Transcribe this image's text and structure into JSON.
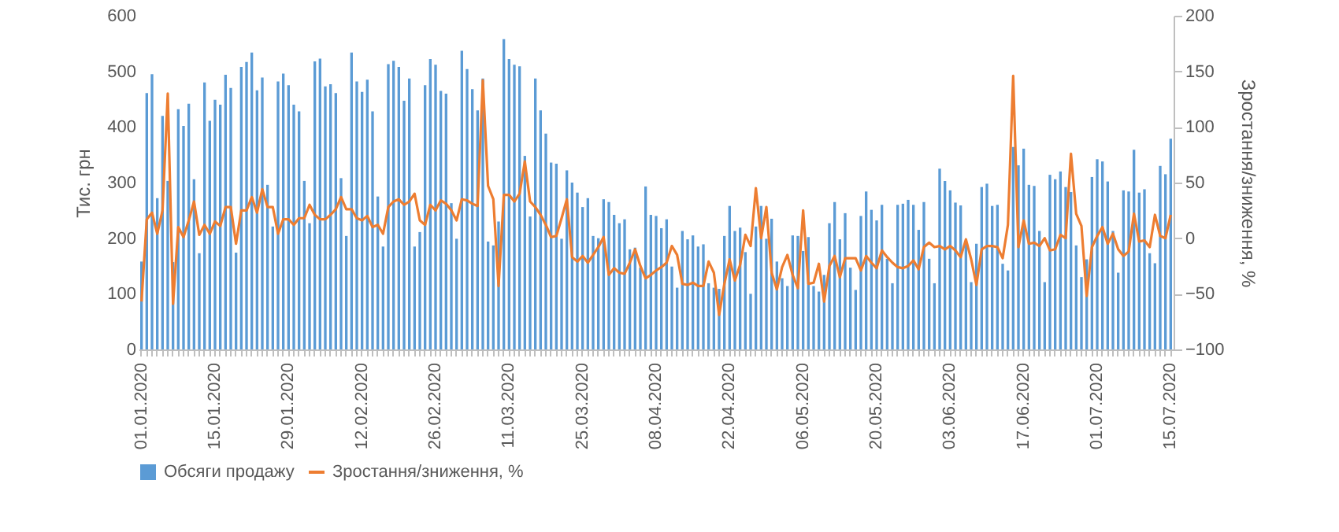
{
  "chart_data": {
    "type": "bar",
    "ylabel": "Тис. грн",
    "y2label": "Зростання/зниження, %",
    "ylim": [
      0,
      600
    ],
    "yticks": [
      0,
      100,
      200,
      300,
      400,
      500,
      600
    ],
    "y2lim": [
      -100,
      200
    ],
    "y2ticks": [
      -100,
      -50,
      0,
      50,
      100,
      150,
      200
    ],
    "legend": "bottom",
    "categories": [
      "01.01.2020",
      null,
      null,
      null,
      null,
      null,
      null,
      null,
      null,
      null,
      null,
      null,
      null,
      null,
      "15.01.2020",
      null,
      null,
      null,
      null,
      null,
      null,
      null,
      null,
      null,
      null,
      null,
      null,
      null,
      "29.01.2020",
      null,
      null,
      null,
      null,
      null,
      null,
      null,
      null,
      null,
      null,
      null,
      null,
      null,
      "12.02.2020",
      null,
      null,
      null,
      null,
      null,
      null,
      null,
      null,
      null,
      null,
      null,
      null,
      null,
      "26.02.2020",
      null,
      null,
      null,
      null,
      null,
      null,
      null,
      null,
      null,
      null,
      null,
      null,
      null,
      "11.03.2020",
      null,
      null,
      null,
      null,
      null,
      null,
      null,
      null,
      null,
      null,
      null,
      null,
      null,
      "25.03.2020",
      null,
      null,
      null,
      null,
      null,
      null,
      null,
      null,
      null,
      null,
      null,
      null,
      null,
      "08.04.2020",
      null,
      null,
      null,
      null,
      null,
      null,
      null,
      null,
      null,
      null,
      null,
      null,
      null,
      "22.04.2020",
      null,
      null,
      null,
      null,
      null,
      null,
      null,
      null,
      null,
      null,
      null,
      null,
      null,
      "06.05.2020",
      null,
      null,
      null,
      null,
      null,
      null,
      null,
      null,
      null,
      null,
      null,
      null,
      null,
      "20.05.2020",
      null,
      null,
      null,
      null,
      null,
      null,
      null,
      null,
      null,
      null,
      null,
      null,
      null,
      "03.06.2020",
      null,
      null,
      null,
      null,
      null,
      null,
      null,
      null,
      null,
      null,
      null,
      null,
      null,
      "17.06.2020",
      null,
      null,
      null,
      null,
      null,
      null,
      null,
      null,
      null,
      null,
      null,
      null,
      null,
      "01.07.2020",
      null,
      null,
      null,
      null,
      null,
      null,
      null,
      null,
      null,
      null,
      null,
      null,
      null,
      "15.07.2020"
    ],
    "series": [
      {
        "name": "Обсяги продажу",
        "color": "#5b9bd5",
        "values": [
          158,
          461,
          495,
          272,
          420,
          303,
          157,
          432,
          402,
          442,
          306,
          173,
          480,
          411,
          449,
          440,
          494,
          470,
          174,
          508,
          517,
          534,
          466,
          489,
          296,
          221,
          482,
          496,
          475,
          440,
          428,
          303,
          227,
          518,
          523,
          473,
          477,
          461,
          308,
          204,
          534,
          482,
          463,
          485,
          428,
          275,
          185,
          513,
          519,
          508,
          447,
          487,
          185,
          211,
          475,
          522,
          512,
          465,
          460,
          263,
          199,
          537,
          504,
          468,
          430,
          487,
          194,
          187,
          230,
          558,
          522,
          512,
          509,
          348,
          239,
          487,
          430,
          388,
          336,
          334,
          199,
          322,
          300,
          282,
          256,
          272,
          204,
          200,
          270,
          265,
          242,
          227,
          234,
          180,
          183,
          147,
          293,
          242,
          240,
          218,
          234,
          149,
          111,
          213,
          198,
          205,
          185,
          189,
          119,
          111,
          109,
          204,
          258,
          213,
          219,
          175,
          100,
          221,
          258,
          199,
          235,
          158,
          128,
          114,
          205,
          204,
          177,
          202,
          114,
          104,
          134,
          227,
          265,
          198,
          245,
          147,
          107,
          240,
          284,
          251,
          232,
          260,
          163,
          119,
          260,
          262,
          269,
          260,
          215,
          265,
          163,
          119,
          325,
          303,
          286,
          264,
          259,
          194,
          121,
          190,
          292,
          298,
          258,
          260,
          154,
          142,
          364,
          331,
          361,
          296,
          294,
          213,
          121,
          314,
          306,
          320,
          292,
          283,
          187,
          130,
          162,
          310,
          342,
          338,
          302,
          213,
          138,
          286,
          284,
          359,
          282,
          288,
          173,
          155,
          330,
          315,
          379
        ]
      },
      {
        "name": "Зростання/зниження, %",
        "type": "line",
        "axis": "y2",
        "color": "#ed7d31",
        "values": [
          -57,
          17,
          23,
          4,
          25,
          130,
          -59,
          10,
          1,
          16,
          33,
          3,
          12,
          4,
          15,
          11,
          28,
          28,
          -5,
          25,
          25,
          37,
          23,
          44,
          28,
          28,
          4,
          17,
          17,
          12,
          18,
          18,
          30,
          21,
          17,
          17,
          21,
          26,
          37,
          26,
          26,
          18,
          16,
          20,
          10,
          12,
          4,
          28,
          33,
          35,
          30,
          33,
          40,
          16,
          12,
          30,
          25,
          34,
          31,
          25,
          16,
          35,
          34,
          31,
          29,
          142,
          47,
          35,
          -43,
          39,
          39,
          33,
          40,
          69,
          33,
          28,
          21,
          12,
          1,
          2,
          18,
          35,
          -17,
          -21,
          -16,
          -22,
          -15,
          -8,
          1,
          -33,
          -27,
          -31,
          -32,
          -22,
          -10,
          -25,
          -36,
          -33,
          -29,
          -26,
          -22,
          -7,
          -15,
          -41,
          -42,
          -40,
          -43,
          -43,
          -21,
          -31,
          -69,
          -41,
          -19,
          -38,
          -24,
          3,
          -7,
          45,
          0,
          28,
          -31,
          -46,
          -26,
          -15,
          -33,
          -45,
          25,
          -41,
          -40,
          -23,
          -57,
          -25,
          -16,
          -35,
          -18,
          -18,
          -18,
          -29,
          -16,
          -22,
          -27,
          -11,
          -17,
          -22,
          -26,
          -27,
          -25,
          -20,
          -28,
          -8,
          -4,
          -8,
          -7,
          -10,
          -7,
          -11,
          -17,
          -1,
          -19,
          -42,
          -10,
          -7,
          -7,
          -8,
          -18,
          12,
          146,
          -8,
          16,
          -5,
          -4,
          -7,
          0,
          -11,
          -10,
          3,
          0,
          76,
          22,
          11,
          -52,
          -8,
          2,
          10,
          -5,
          4,
          -10,
          -16,
          -12,
          22,
          -3,
          -2,
          -8,
          21,
          2,
          0,
          21
        ]
      }
    ]
  }
}
